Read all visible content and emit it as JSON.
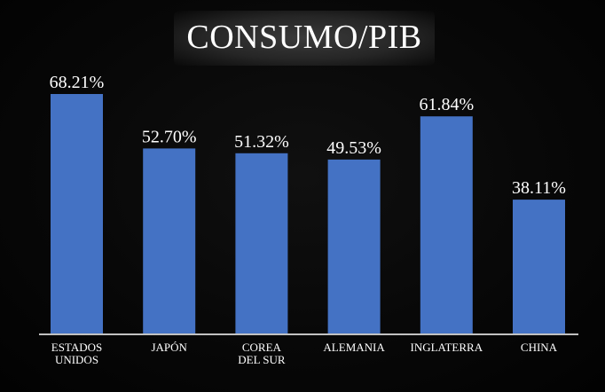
{
  "chart_data": {
    "type": "bar",
    "title": "CONSUMO/PIB",
    "xlabel": "",
    "ylabel": "",
    "ylim": [
      0,
      73
    ],
    "grid": false,
    "legend": "none",
    "bar_color": "#4472c4",
    "categories": [
      "ESTADOS UNIDOS",
      "JAPÓN",
      "COREA DEL SUR",
      "ALEMANIA",
      "INGLATERRA",
      "CHINA"
    ],
    "category_lines": [
      [
        "ESTADOS",
        "UNIDOS"
      ],
      [
        "JAPÓN"
      ],
      [
        "COREA",
        "DEL SUR"
      ],
      [
        "ALEMANIA"
      ],
      [
        "INGLATERRA"
      ],
      [
        "CHINA"
      ]
    ],
    "values": [
      68.21,
      52.7,
      51.32,
      49.53,
      61.84,
      38.11
    ],
    "value_labels": [
      "68.21%",
      "52.70%",
      "51.32%",
      "49.53%",
      "61.84%",
      "38.11%"
    ]
  }
}
